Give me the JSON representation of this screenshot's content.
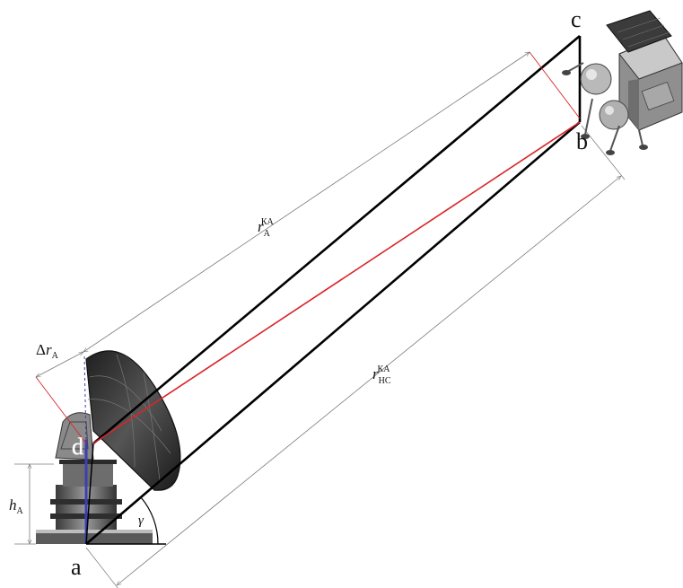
{
  "points": {
    "a": "a",
    "b": "b",
    "c": "c",
    "d": "d"
  },
  "labels": {
    "h_a": {
      "main": "h",
      "sub": "А"
    },
    "delta_r_a": {
      "delta": "Δ",
      "main": "r",
      "sub": "А"
    },
    "r_a_ka": {
      "main": "r",
      "sub": "А",
      "sup": "КА"
    },
    "r_nc_ka": {
      "main": "r",
      "sub": "НС",
      "sup": "КА"
    },
    "gamma": "γ"
  },
  "colors": {
    "frame": "#000000",
    "signal_line": "#d9252a",
    "antenna_axis": "#3b3fb0",
    "dimension": "#7a7a7a",
    "dish": "#2c2c2c"
  },
  "icons": {
    "antenna": "radio-telescope-dish-icon",
    "spacecraft": "lunar-lander-spacecraft-icon"
  }
}
